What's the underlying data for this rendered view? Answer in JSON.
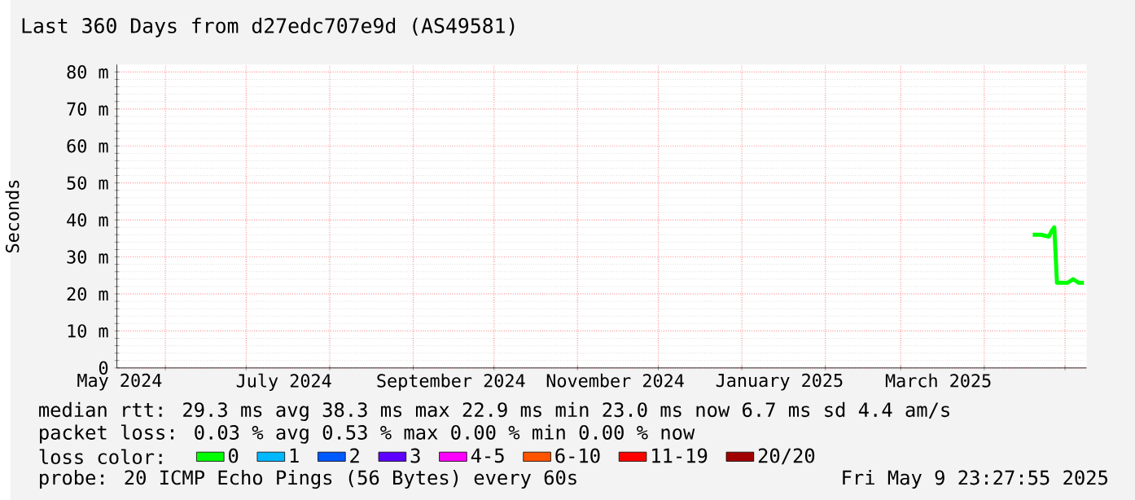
{
  "chart_data": {
    "type": "line",
    "title": "Last 360 Days from d27edc707e9d (AS49581)",
    "ylabel": "Seconds",
    "x": [
      "2025-04-19",
      "2025-04-22",
      "2025-04-25",
      "2025-04-26",
      "2025-04-27",
      "2025-04-28",
      "2025-05-02",
      "2025-05-04",
      "2025-05-06",
      "2025-05-08"
    ],
    "series": [
      {
        "name": "0",
        "color": "#00ff00",
        "values": [
          36,
          36,
          35.5,
          37,
          38,
          23,
          23,
          24,
          23,
          23
        ]
      },
      {
        "name": "1",
        "color": "#00b8ff",
        "values": [
          null,
          null,
          null,
          null,
          null,
          null,
          null,
          null,
          null,
          null
        ]
      },
      {
        "name": "2",
        "color": "#0059ff",
        "values": [
          null,
          null,
          null,
          null,
          null,
          null,
          null,
          null,
          null,
          null
        ]
      },
      {
        "name": "3",
        "color": "#5e00ff",
        "values": [
          null,
          null,
          null,
          null,
          null,
          null,
          null,
          null,
          null,
          null
        ]
      },
      {
        "name": "4-5",
        "color": "#ff00ff",
        "values": [
          null,
          null,
          null,
          null,
          null,
          null,
          null,
          null,
          null,
          null
        ]
      },
      {
        "name": "6-10",
        "color": "#ff5500",
        "values": [
          null,
          null,
          null,
          null,
          null,
          null,
          null,
          null,
          null,
          null
        ]
      },
      {
        "name": "11-19",
        "color": "#ff0000",
        "values": [
          null,
          null,
          null,
          null,
          null,
          null,
          null,
          null,
          null,
          null
        ]
      },
      {
        "name": "20/20",
        "color": "#a10000",
        "values": [
          null,
          null,
          null,
          null,
          null,
          null,
          null,
          null,
          null,
          null
        ]
      }
    ],
    "legend_title": "loss color:",
    "legend": "bottom",
    "grid": true,
    "xlim": [
      "2024-05-14",
      "2025-05-09"
    ],
    "xticks": [
      {
        "value": "2024-05-15",
        "label": "May 2024"
      },
      {
        "value": "2024-06-01",
        "label": null
      },
      {
        "value": "2024-07-01",
        "label": null
      },
      {
        "value": "2024-07-15",
        "label": "July 2024"
      },
      {
        "value": "2024-08-01",
        "label": null
      },
      {
        "value": "2024-09-01",
        "label": null
      },
      {
        "value": "2024-09-15",
        "label": "September 2024"
      },
      {
        "value": "2024-10-01",
        "label": null
      },
      {
        "value": "2024-11-01",
        "label": null
      },
      {
        "value": "2024-11-15",
        "label": "November 2024"
      },
      {
        "value": "2024-12-01",
        "label": null
      },
      {
        "value": "2025-01-01",
        "label": null
      },
      {
        "value": "2025-01-15",
        "label": "January 2025"
      },
      {
        "value": "2025-02-01",
        "label": null
      },
      {
        "value": "2025-03-01",
        "label": null
      },
      {
        "value": "2025-03-15",
        "label": "March 2025"
      },
      {
        "value": "2025-04-01",
        "label": null
      },
      {
        "value": "2025-05-01",
        "label": null
      }
    ],
    "ylim": [
      0,
      82
    ],
    "yticks": [
      0,
      {
        "value": 10,
        "label": "10 m"
      },
      {
        "value": 20,
        "label": "20 m"
      },
      {
        "value": 30,
        "label": "30 m"
      },
      {
        "value": 40,
        "label": "40 m"
      },
      {
        "value": 50,
        "label": "50 m"
      },
      {
        "value": 60,
        "label": "60 m"
      },
      {
        "value": 70,
        "label": "70 m"
      },
      {
        "value": 80,
        "label": "80 m"
      }
    ],
    "annotations": [
      "median rtt: 29.3 ms avg 38.3 ms max 22.9 ms min 23.0 ms now 6.7 ms sd 4.4 am/s",
      "packet loss: 0.03 % avg 0.53 % max 0.00 % min 0.00 % now",
      "probe: 20 ICMP Echo Pings (56 Bytes) every 60s",
      "Fri May 9 23:27:55 2025"
    ]
  }
}
